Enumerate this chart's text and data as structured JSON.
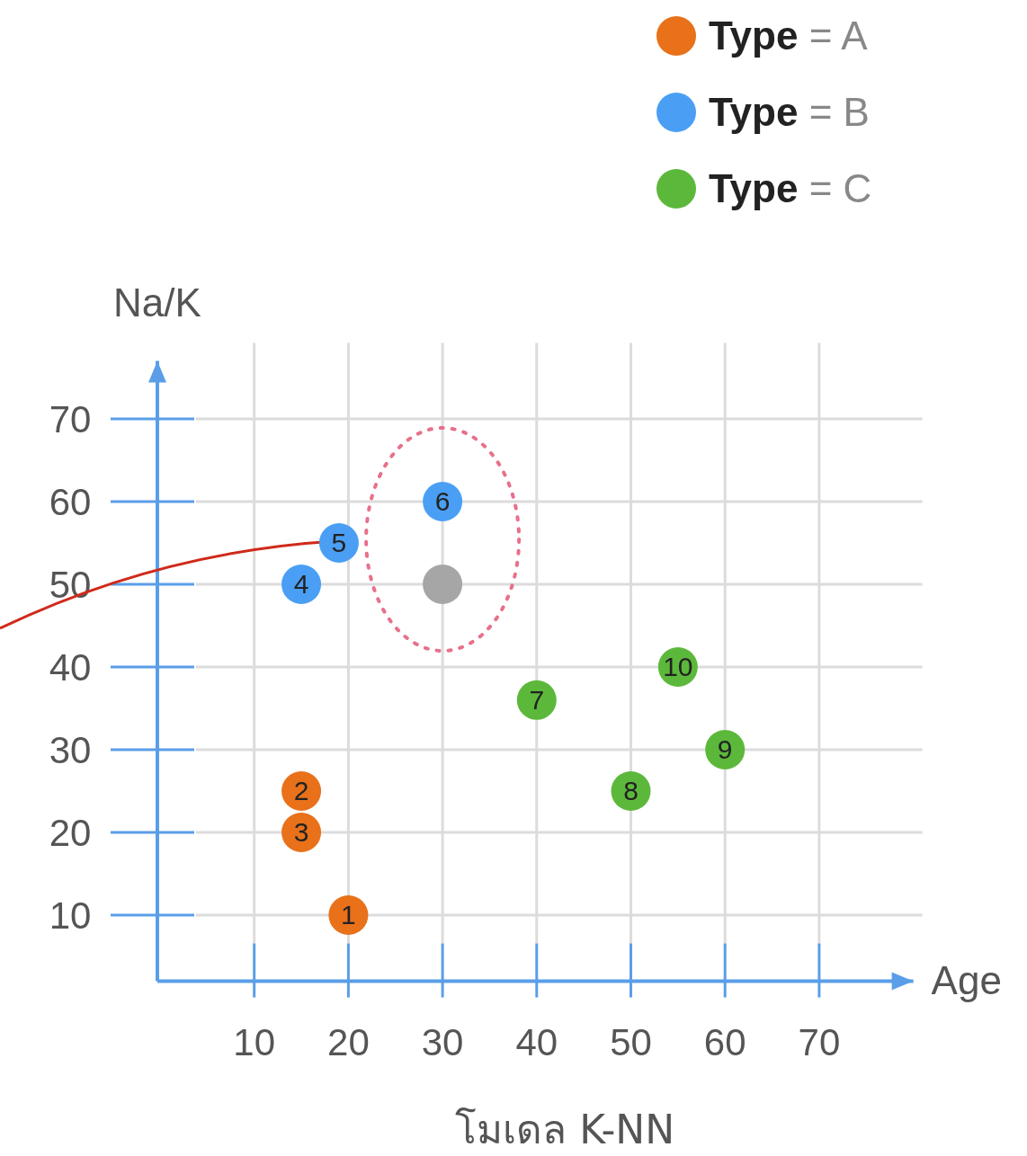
{
  "chart_data": {
    "type": "scatter",
    "xlabel": "Age",
    "ylabel": "Na/K",
    "xlim": [
      0,
      80
    ],
    "ylim": [
      2,
      77
    ],
    "xticks": [
      10,
      20,
      30,
      40,
      50,
      60,
      70
    ],
    "yticks": [
      10,
      20,
      30,
      40,
      50,
      60,
      70
    ],
    "grid": true,
    "legend": "top right",
    "marker": "circle",
    "series": [
      {
        "name": "**Type** = A",
        "color": "#e8711a",
        "x": [
          20,
          15,
          15
        ],
        "values": [
          10,
          25,
          20
        ]
      },
      {
        "name": "**Type** = B",
        "color": "#4a9ff5",
        "x": [
          15,
          19,
          30
        ],
        "values": [
          50,
          55,
          60
        ]
      },
      {
        "name": "**Type** = C",
        "color": "#5cb83a",
        "x": [
          40,
          50,
          60,
          55
        ],
        "values": [
          36,
          25,
          30,
          40
        ]
      },
      {
        "color": "#a6a6a6",
        "x": [
          30
        ],
        "values": [
          50
        ]
      }
    ],
    "annotations": [
      {
        "text": "1",
        "x": 20,
        "y": 10
      },
      {
        "text": "2",
        "x": 15,
        "y": 25
      },
      {
        "text": "3",
        "x": 15,
        "y": 20
      },
      {
        "text": "4",
        "x": 15,
        "y": 50
      },
      {
        "text": "5",
        "x": 19,
        "y": 55
      },
      {
        "text": "6",
        "x": 30,
        "y": 60
      },
      {
        "text": "7",
        "x": 40,
        "y": 36
      },
      {
        "text": "8",
        "x": 50,
        "y": 25
      },
      {
        "text": "9",
        "x": 60,
        "y": 30
      },
      {
        "text": "10",
        "x": 55,
        "y": 40
      },
      "โมเดล K-NN"
    ]
  }
}
